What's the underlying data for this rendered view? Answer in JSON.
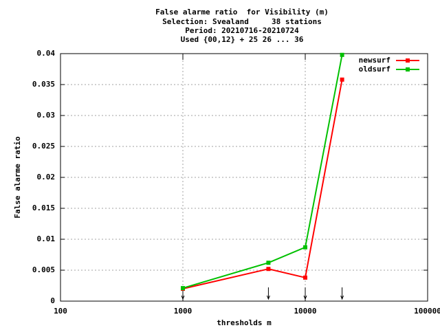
{
  "chart_data": {
    "type": "line",
    "title": [
      "False alarme ratio  for Visibility (m)",
      "Selection: Svealand     38 stations",
      "Period: 20210716-20210724",
      "Used {00,12} + 25 26 ... 36"
    ],
    "x_label": "thresholds m",
    "y_label": "False alarme ratio",
    "x": [
      1000,
      5000,
      10000,
      20000
    ],
    "series": [
      {
        "name": "newsurf",
        "color": "#ff0000",
        "values": [
          0.002,
          0.0052,
          0.0038,
          0.0358
        ]
      },
      {
        "name": "oldsurf",
        "color": "#00c000",
        "values": [
          0.0021,
          0.0062,
          0.0087,
          0.0398
        ]
      }
    ],
    "xlog": true,
    "xlim": [
      100,
      100000
    ],
    "xticks": [
      100,
      1000,
      10000,
      100000
    ],
    "ylim": [
      0,
      0.04
    ],
    "yticks": [
      0,
      0.005,
      0.01,
      0.015,
      0.02,
      0.025,
      0.03,
      0.035,
      0.04
    ],
    "grid": true,
    "legend": "top-right"
  }
}
